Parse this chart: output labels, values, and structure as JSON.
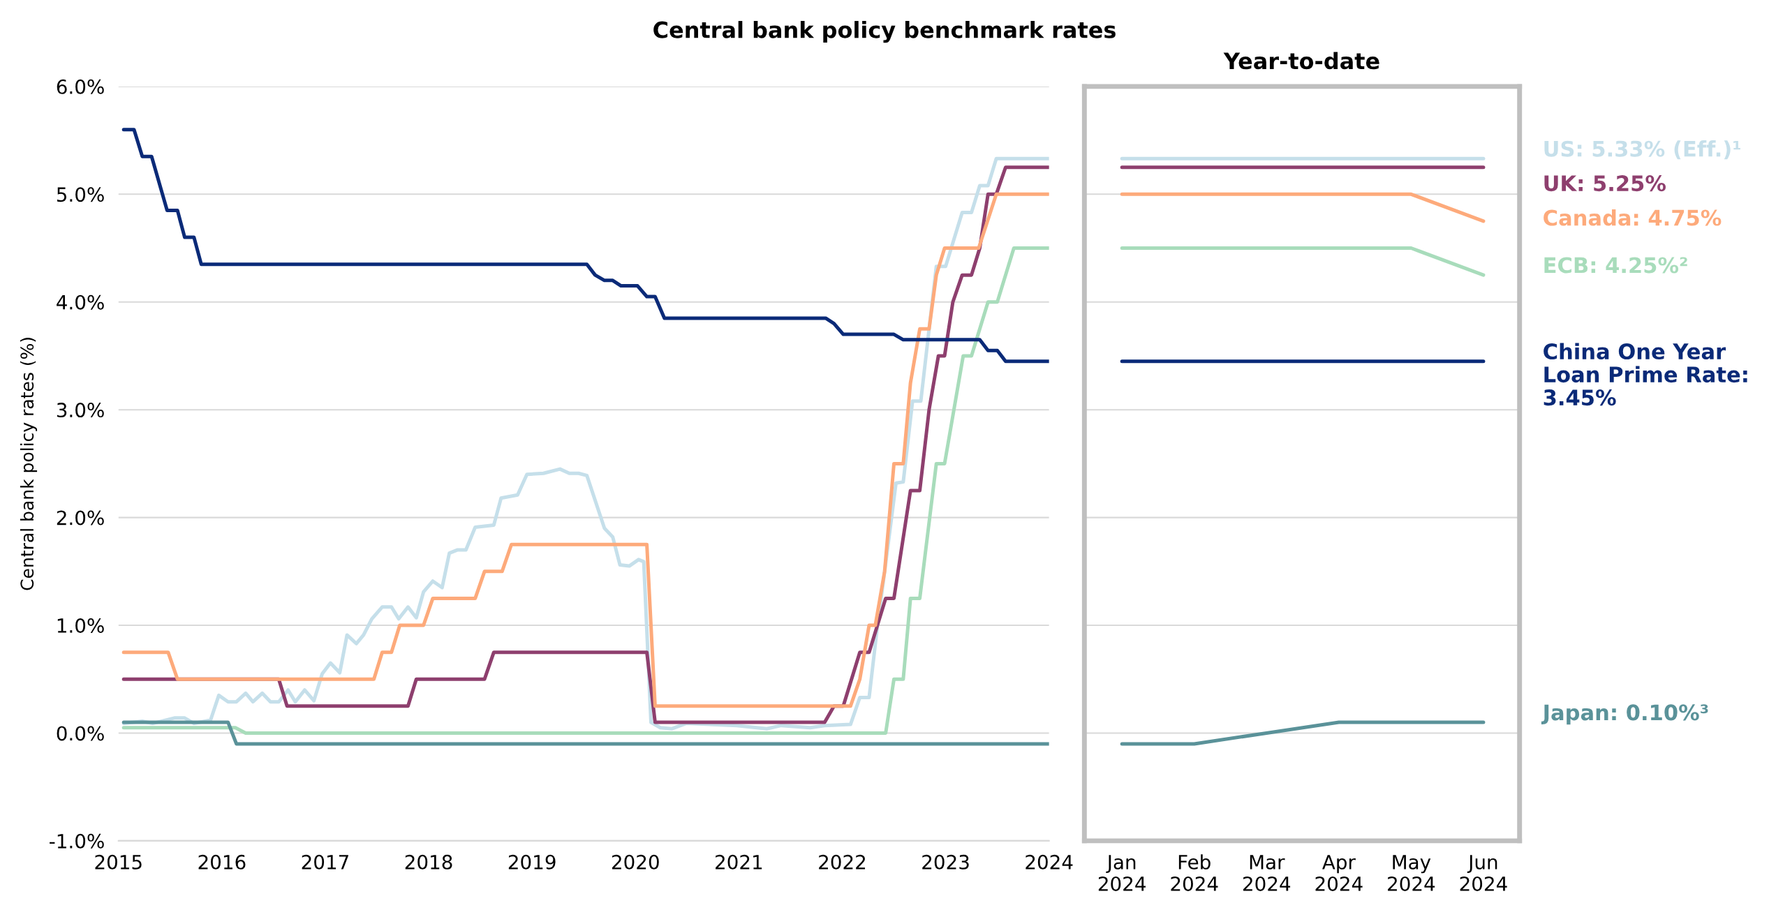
{
  "chart_data": [
    {
      "type": "line",
      "title": "Central bank policy benchmark rates",
      "ylabel": "Central bank policy rates (%)",
      "xlim": [
        2015,
        2024
      ],
      "xticks": [
        2015,
        2016,
        2017,
        2018,
        2019,
        2020,
        2021,
        2022,
        2023,
        2024
      ],
      "ylim": [
        -1,
        6
      ],
      "yticks": [
        {
          "value": -1,
          "label": "-1.0%"
        },
        {
          "value": 0,
          "label": "0.0%"
        },
        {
          "value": 1,
          "label": "1.0%"
        },
        {
          "value": 2,
          "label": "2.0%"
        },
        {
          "value": 3,
          "label": "3.0%"
        },
        {
          "value": 4,
          "label": "4.0%"
        },
        {
          "value": 5,
          "label": "5.0%"
        },
        {
          "value": 6,
          "label": "6.0%"
        }
      ],
      "grid": "y",
      "line_style": "solid",
      "marker": "none",
      "series": [
        {
          "color": "#c5dfea",
          "x": [
            2015.05,
            2015.23,
            2015.33,
            2015.54,
            2015.64,
            2015.73,
            2015.89,
            2015.97,
            2016.06,
            2016.14,
            2016.23,
            2016.3,
            2016.39,
            2016.47,
            2016.55,
            2016.64,
            2016.71,
            2016.8,
            2016.89,
            2016.97,
            2017.05,
            2017.14,
            2017.21,
            2017.3,
            2017.37,
            2017.45,
            2017.55,
            2017.64,
            2017.71,
            2017.8,
            2017.88,
            2017.95,
            2018.04,
            2018.13,
            2018.2,
            2018.28,
            2018.36,
            2018.45,
            2018.63,
            2018.7,
            2018.86,
            2018.95,
            2019.11,
            2019.27,
            2019.36,
            2019.45,
            2019.53,
            2019.7,
            2019.78,
            2019.85,
            2019.94,
            2020.03,
            2020.08,
            2020.15,
            2020.24,
            2020.35,
            2020.49,
            2020.98,
            2021.27,
            2021.41,
            2021.69,
            2021.83,
            2022.08,
            2022.17,
            2022.26,
            2022.34,
            2022.41,
            2022.52,
            2022.59,
            2022.68,
            2022.76,
            2022.91,
            2023.0,
            2023.16,
            2023.25,
            2023.33,
            2023.41,
            2023.49,
            2024.0
          ],
          "values": [
            0.09,
            0.11,
            0.09,
            0.14,
            0.14,
            0.09,
            0.12,
            0.35,
            0.29,
            0.29,
            0.37,
            0.29,
            0.37,
            0.29,
            0.29,
            0.4,
            0.29,
            0.4,
            0.3,
            0.55,
            0.65,
            0.56,
            0.91,
            0.83,
            0.91,
            1.06,
            1.17,
            1.17,
            1.06,
            1.17,
            1.07,
            1.31,
            1.41,
            1.35,
            1.67,
            1.7,
            1.7,
            1.91,
            1.93,
            2.18,
            2.21,
            2.4,
            2.41,
            2.45,
            2.41,
            2.41,
            2.39,
            1.9,
            1.82,
            1.56,
            1.55,
            1.61,
            1.59,
            0.1,
            0.05,
            0.04,
            0.09,
            0.07,
            0.04,
            0.07,
            0.05,
            0.07,
            0.08,
            0.33,
            0.33,
            0.99,
            1.5,
            2.32,
            2.33,
            3.08,
            3.08,
            4.33,
            4.33,
            4.83,
            4.83,
            5.08,
            5.08,
            5.33,
            5.33
          ]
        },
        {
          "color": "#8e3f6e",
          "x": [
            2015.05,
            2016.55,
            2016.63,
            2017.8,
            2017.88,
            2018.54,
            2018.63,
            2020.11,
            2020.19,
            2021.83,
            2021.92,
            2022.01,
            2022.17,
            2022.26,
            2022.42,
            2022.5,
            2022.66,
            2022.75,
            2022.84,
            2022.93,
            2022.99,
            2023.07,
            2023.16,
            2023.25,
            2023.33,
            2023.41,
            2023.49,
            2023.58,
            2024.0
          ],
          "values": [
            0.5,
            0.5,
            0.25,
            0.25,
            0.5,
            0.5,
            0.75,
            0.75,
            0.1,
            0.1,
            0.25,
            0.25,
            0.75,
            0.75,
            1.25,
            1.25,
            2.25,
            2.25,
            3.0,
            3.5,
            3.5,
            4.0,
            4.25,
            4.25,
            4.5,
            5.0,
            5.0,
            5.25,
            5.25
          ]
        },
        {
          "color": "#fdaa7b",
          "x": [
            2015.05,
            2015.48,
            2015.57,
            2017.47,
            2017.55,
            2017.64,
            2017.72,
            2017.95,
            2018.04,
            2018.45,
            2018.54,
            2018.71,
            2018.8,
            2020.11,
            2020.19,
            2022.08,
            2022.17,
            2022.26,
            2022.32,
            2022.41,
            2022.5,
            2022.59,
            2022.66,
            2022.75,
            2022.84,
            2022.91,
            2022.99,
            2023.32,
            2023.49,
            2024.0
          ],
          "values": [
            0.75,
            0.75,
            0.5,
            0.5,
            0.75,
            0.75,
            1.0,
            1.0,
            1.25,
            1.25,
            1.5,
            1.5,
            1.75,
            1.75,
            0.25,
            0.25,
            0.5,
            1.0,
            1.0,
            1.5,
            2.5,
            2.5,
            3.25,
            3.75,
            3.75,
            4.25,
            4.5,
            4.5,
            5.0,
            5.0
          ]
        },
        {
          "color": "#a8dcbb",
          "x": [
            2015.05,
            2016.13,
            2016.23,
            2022.42,
            2022.5,
            2022.59,
            2022.66,
            2022.75,
            2022.91,
            2022.99,
            2023.17,
            2023.25,
            2023.41,
            2023.5,
            2023.66,
            2024.0
          ],
          "values": [
            0.05,
            0.05,
            0,
            0,
            0.5,
            0.5,
            1.25,
            1.25,
            2.5,
            2.5,
            3.5,
            3.5,
            4.0,
            4.0,
            4.5,
            4.5
          ]
        },
        {
          "color": "#0a2a78",
          "x": [
            2015.05,
            2015.15,
            2015.23,
            2015.32,
            2015.47,
            2015.57,
            2015.64,
            2015.73,
            2015.8,
            2019.53,
            2019.61,
            2019.7,
            2019.78,
            2019.86,
            2020.02,
            2020.11,
            2020.19,
            2020.28,
            2021.84,
            2021.92,
            2022.01,
            2022.5,
            2022.59,
            2023.33,
            2023.41,
            2023.5,
            2023.58,
            2024.0
          ],
          "values": [
            5.6,
            5.6,
            5.35,
            5.35,
            4.85,
            4.85,
            4.6,
            4.6,
            4.35,
            4.35,
            4.25,
            4.2,
            4.2,
            4.15,
            4.15,
            4.05,
            4.05,
            3.85,
            3.85,
            3.8,
            3.7,
            3.7,
            3.65,
            3.65,
            3.55,
            3.55,
            3.45,
            3.45
          ]
        },
        {
          "color": "#5a9299",
          "x": [
            2015.05,
            2016.06,
            2016.14,
            2024.0
          ],
          "values": [
            0.1,
            0.1,
            -0.1,
            -0.1
          ]
        }
      ]
    },
    {
      "type": "line",
      "title": "Year-to-date",
      "categories": [
        "Jan 2024",
        "Feb 2024",
        "Mar 2024",
        "Apr 2024",
        "May 2024",
        "Jun 2024"
      ],
      "ylim": [
        -1,
        6
      ],
      "yticks": [
        -1,
        0,
        1,
        2,
        3,
        4,
        5,
        6
      ],
      "tick_labels": "x",
      "grid": "y",
      "line_style": "solid",
      "marker": "none",
      "series": [
        {
          "name": "US: 5.33% (Eff.)¹",
          "color": "#c5dfea",
          "values": [
            5.33,
            5.33,
            5.33,
            5.33,
            5.33,
            5.33
          ]
        },
        {
          "name": "UK: 5.25%",
          "color": "#8e3f6e",
          "values": [
            5.25,
            5.25,
            5.25,
            5.25,
            5.25,
            5.25
          ]
        },
        {
          "name": "Canada: 4.75%",
          "color": "#fdaa7b",
          "values": [
            5.0,
            5.0,
            5.0,
            5.0,
            5.0,
            4.75
          ]
        },
        {
          "name": "ECB: 4.25%²",
          "color": "#a8dcbb",
          "values": [
            4.5,
            4.5,
            4.5,
            4.5,
            4.5,
            4.25
          ]
        },
        {
          "name": "China One Year Loan Prime Rate: 3.45%",
          "color": "#0a2a78",
          "values": [
            3.45,
            3.45,
            3.45,
            3.45,
            3.45,
            3.45
          ]
        },
        {
          "name": "Japan: 0.10%³",
          "color": "#5a9299",
          "values": [
            -0.1,
            -0.1,
            0.0,
            0.1,
            0.1,
            0.1
          ]
        }
      ]
    }
  ]
}
